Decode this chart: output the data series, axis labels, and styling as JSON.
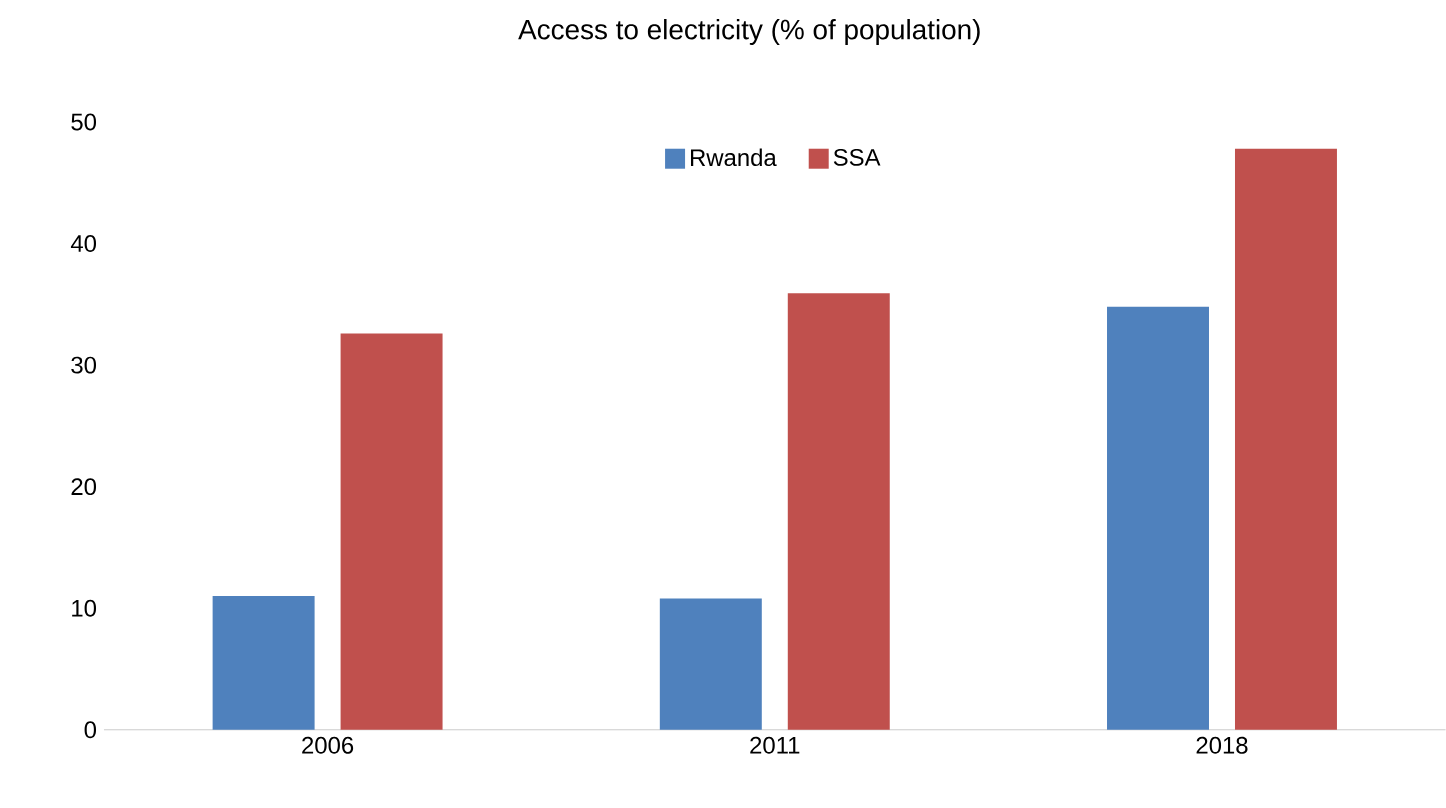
{
  "chart_data": {
    "type": "bar",
    "title": "Access to electricity (% of population)",
    "categories": [
      "2006",
      "2011",
      "2018"
    ],
    "series": [
      {
        "name": "Rwanda",
        "color": "#4f81bd",
        "values": [
          11.0,
          10.8,
          34.8
        ]
      },
      {
        "name": "SSA",
        "color": "#c0504d",
        "values": [
          32.6,
          35.9,
          47.8
        ]
      }
    ],
    "ylim": [
      0,
      50
    ],
    "yticks": [
      0,
      10,
      20,
      30,
      40,
      50
    ],
    "legend": "top"
  }
}
